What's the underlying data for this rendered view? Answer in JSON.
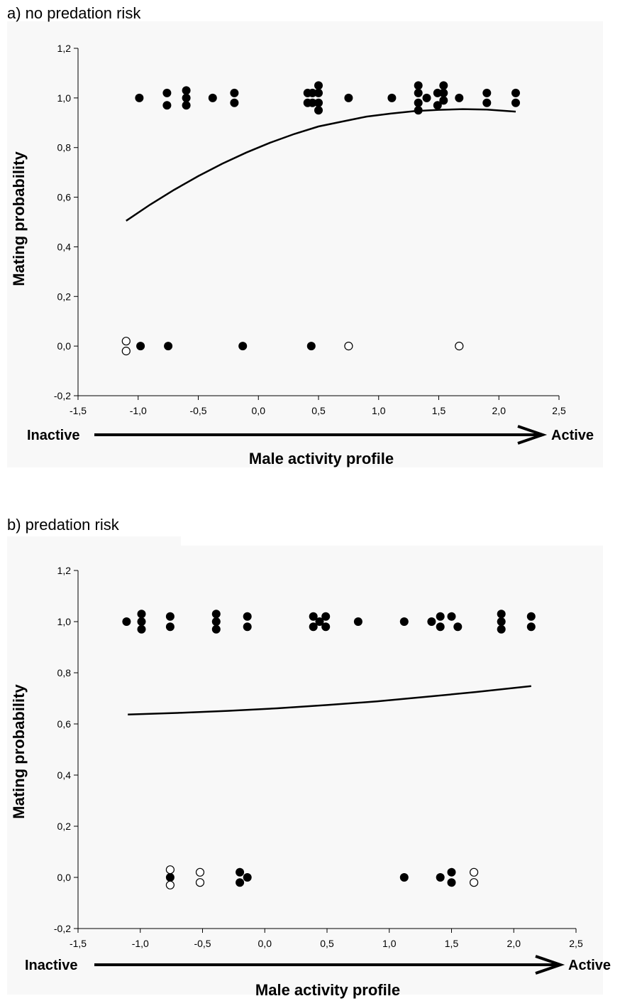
{
  "chart_data": [
    {
      "type": "scatter",
      "title": "a) no predation risk",
      "xlabel": "Male activity profile",
      "ylabel": "Mating probability",
      "xlim": [
        -1.5,
        2.5
      ],
      "ylim": [
        -0.2,
        1.2
      ],
      "x_ticks": [
        "-1,5",
        "-1,0",
        "-0,5",
        "0,0",
        "0,5",
        "1,0",
        "1,5",
        "2,0",
        "2,5"
      ],
      "y_ticks": [
        "-0,2",
        "0,0",
        "0,2",
        "0,4",
        "0,6",
        "0,8",
        "1,0",
        "1,2"
      ],
      "arrow_left_label": "Inactive",
      "arrow_right_label": "Active",
      "grid": false,
      "series": [
        {
          "marker": "filled-circle",
          "points": [
            [
              -0.99,
              1.0
            ],
            [
              -0.76,
              1.02
            ],
            [
              -0.76,
              0.97
            ],
            [
              -0.6,
              1.03
            ],
            [
              -0.6,
              1.0
            ],
            [
              -0.6,
              0.97
            ],
            [
              -0.38,
              1.0
            ],
            [
              -0.2,
              1.02
            ],
            [
              -0.2,
              0.98
            ],
            [
              0.41,
              1.02
            ],
            [
              0.41,
              0.98
            ],
            [
              0.45,
              1.02
            ],
            [
              0.45,
              0.98
            ],
            [
              0.5,
              1.05
            ],
            [
              0.5,
              1.02
            ],
            [
              0.5,
              0.98
            ],
            [
              0.5,
              0.95
            ],
            [
              0.75,
              1.0
            ],
            [
              1.11,
              1.0
            ],
            [
              1.33,
              1.05
            ],
            [
              1.33,
              1.02
            ],
            [
              1.33,
              0.98
            ],
            [
              1.33,
              0.95
            ],
            [
              1.4,
              1.0
            ],
            [
              1.49,
              1.02
            ],
            [
              1.49,
              0.97
            ],
            [
              1.54,
              1.05
            ],
            [
              1.54,
              1.02
            ],
            [
              1.54,
              0.99
            ],
            [
              1.67,
              1.0
            ],
            [
              1.9,
              1.02
            ],
            [
              1.9,
              0.98
            ],
            [
              2.14,
              1.02
            ],
            [
              2.14,
              0.98
            ],
            [
              -0.98,
              0.0
            ],
            [
              -0.75,
              0.0
            ],
            [
              -0.13,
              0.0
            ],
            [
              0.44,
              0.0
            ]
          ]
        },
        {
          "marker": "open-circle",
          "points": [
            [
              -1.1,
              0.02
            ],
            [
              -1.1,
              -0.02
            ],
            [
              0.75,
              0.0
            ],
            [
              1.67,
              0.0
            ]
          ]
        },
        {
          "marker": "line",
          "points": [
            [
              -1.1,
              0.505
            ],
            [
              -0.9,
              0.57
            ],
            [
              -0.7,
              0.63
            ],
            [
              -0.5,
              0.685
            ],
            [
              -0.3,
              0.735
            ],
            [
              -0.1,
              0.78
            ],
            [
              0.1,
              0.82
            ],
            [
              0.3,
              0.855
            ],
            [
              0.5,
              0.885
            ],
            [
              0.7,
              0.905
            ],
            [
              0.9,
              0.925
            ],
            [
              1.1,
              0.937
            ],
            [
              1.3,
              0.947
            ],
            [
              1.5,
              0.952
            ],
            [
              1.7,
              0.955
            ],
            [
              1.9,
              0.953
            ],
            [
              2.14,
              0.945
            ]
          ]
        }
      ]
    },
    {
      "type": "scatter",
      "title": "b) predation risk",
      "xlabel": "Male activity profile",
      "ylabel": "Mating probability",
      "xlim": [
        -1.5,
        2.5
      ],
      "ylim": [
        -0.2,
        1.2
      ],
      "x_ticks": [
        "-1,5",
        "-1,0",
        "-0,5",
        "0,0",
        "0,5",
        "1,0",
        "1,5",
        "2,0",
        "2,5"
      ],
      "y_ticks": [
        "-0,2",
        "0,0",
        "0,2",
        "0,4",
        "0,6",
        "0,8",
        "1,0",
        "1,2"
      ],
      "arrow_left_label": "Inactive",
      "arrow_right_label": "Active",
      "grid": false,
      "series": [
        {
          "marker": "filled-circle",
          "points": [
            [
              -1.11,
              1.0
            ],
            [
              -0.99,
              1.03
            ],
            [
              -0.99,
              1.0
            ],
            [
              -0.99,
              0.97
            ],
            [
              -0.76,
              1.02
            ],
            [
              -0.76,
              0.98
            ],
            [
              -0.39,
              1.03
            ],
            [
              -0.39,
              1.0
            ],
            [
              -0.39,
              0.97
            ],
            [
              -0.14,
              1.02
            ],
            [
              -0.14,
              0.98
            ],
            [
              0.39,
              1.02
            ],
            [
              0.39,
              0.98
            ],
            [
              0.44,
              1.0
            ],
            [
              0.49,
              1.02
            ],
            [
              0.49,
              0.98
            ],
            [
              0.75,
              1.0
            ],
            [
              1.12,
              1.0
            ],
            [
              1.34,
              1.0
            ],
            [
              1.41,
              1.02
            ],
            [
              1.41,
              0.98
            ],
            [
              1.5,
              1.02
            ],
            [
              1.55,
              0.98
            ],
            [
              1.9,
              1.03
            ],
            [
              1.9,
              1.0
            ],
            [
              1.9,
              0.97
            ],
            [
              2.14,
              1.02
            ],
            [
              2.14,
              0.98
            ],
            [
              -0.76,
              0.0
            ],
            [
              -0.2,
              0.02
            ],
            [
              -0.2,
              -0.02
            ],
            [
              -0.14,
              0.0
            ],
            [
              1.12,
              0.0
            ],
            [
              1.41,
              0.0
            ],
            [
              1.5,
              0.02
            ],
            [
              1.5,
              -0.02
            ]
          ]
        },
        {
          "marker": "open-circle",
          "points": [
            [
              -0.76,
              0.03
            ],
            [
              -0.76,
              -0.03
            ],
            [
              -0.52,
              0.02
            ],
            [
              -0.52,
              -0.02
            ],
            [
              1.68,
              0.02
            ],
            [
              1.68,
              -0.02
            ]
          ]
        },
        {
          "marker": "line",
          "points": [
            [
              -1.1,
              0.637
            ],
            [
              -0.7,
              0.643
            ],
            [
              -0.3,
              0.651
            ],
            [
              0.1,
              0.661
            ],
            [
              0.5,
              0.674
            ],
            [
              0.9,
              0.688
            ],
            [
              1.3,
              0.706
            ],
            [
              1.7,
              0.725
            ],
            [
              2.14,
              0.748
            ]
          ]
        }
      ]
    }
  ]
}
